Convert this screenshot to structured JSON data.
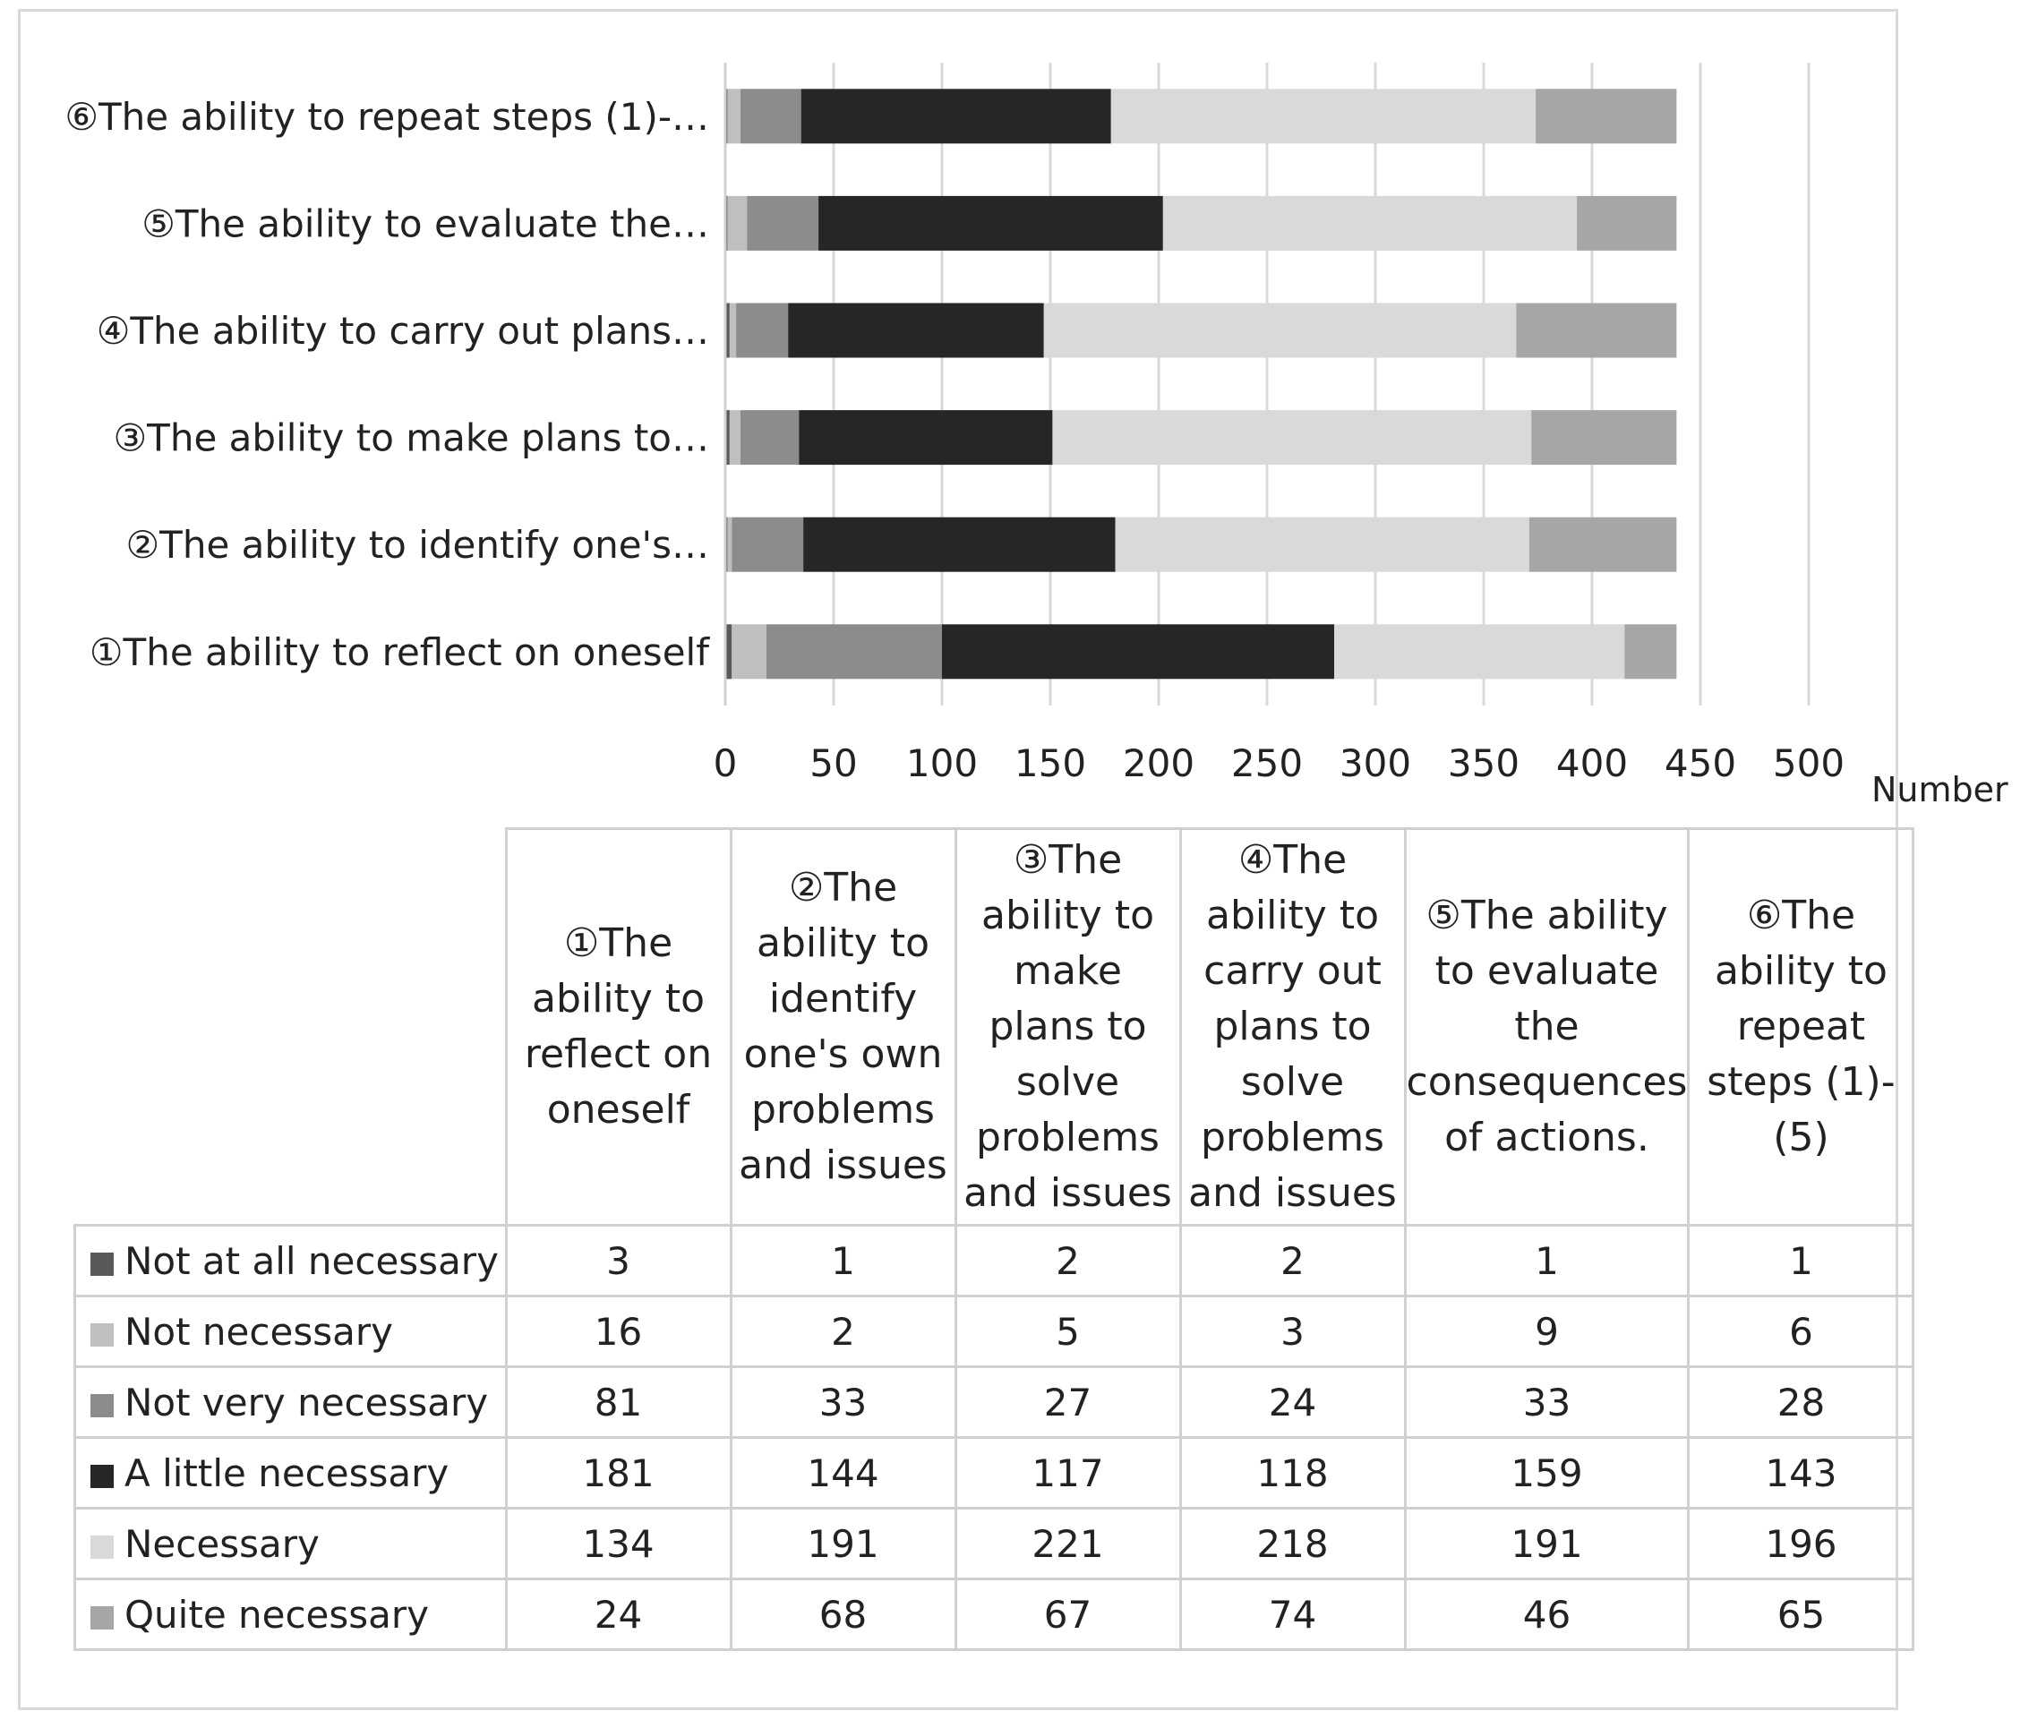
{
  "chart_data": {
    "type": "bar",
    "orientation": "horizontal",
    "stacked": true,
    "categories": [
      "①The ability to reflect on oneself",
      "②The ability to identify one's…",
      "③The ability to make plans to…",
      "④The ability to carry out plans…",
      "⑤The ability to evaluate the…",
      "⑥The ability to repeat steps (1)-…"
    ],
    "series": [
      {
        "name": "Not at all necessary",
        "color": "#595959",
        "values": [
          3,
          1,
          2,
          2,
          1,
          1
        ]
      },
      {
        "name": "Not necessary",
        "color": "#bfbfbf",
        "values": [
          16,
          2,
          5,
          3,
          9,
          6
        ]
      },
      {
        "name": "Not very necessary",
        "color": "#8c8c8c",
        "values": [
          81,
          33,
          27,
          24,
          33,
          28
        ]
      },
      {
        "name": "A little necessary",
        "color": "#262626",
        "values": [
          181,
          144,
          117,
          118,
          159,
          143
        ]
      },
      {
        "name": "Necessary",
        "color": "#d9d9d9",
        "values": [
          134,
          191,
          221,
          218,
          191,
          196
        ]
      },
      {
        "name": "Quite necessary",
        "color": "#a6a6a6",
        "values": [
          24,
          68,
          67,
          74,
          46,
          65
        ]
      }
    ],
    "xlim": [
      0,
      500
    ],
    "xticks": [
      "0",
      "50",
      "100",
      "150",
      "200",
      "250",
      "300",
      "350",
      "400",
      "450",
      "500"
    ],
    "xlabel": "Number",
    "grid": "vertical",
    "legend": "data table below chart",
    "table_headers": [
      "①The ability to reflect on oneself",
      "②The ability to identify one's own problems and issues",
      "③The ability to make plans to solve problems and issues",
      "④The ability to carry out plans to solve problems and issues",
      "⑤The ability to evaluate the consequences of actions.",
      "⑥The ability to repeat steps (1)-(5)"
    ]
  }
}
